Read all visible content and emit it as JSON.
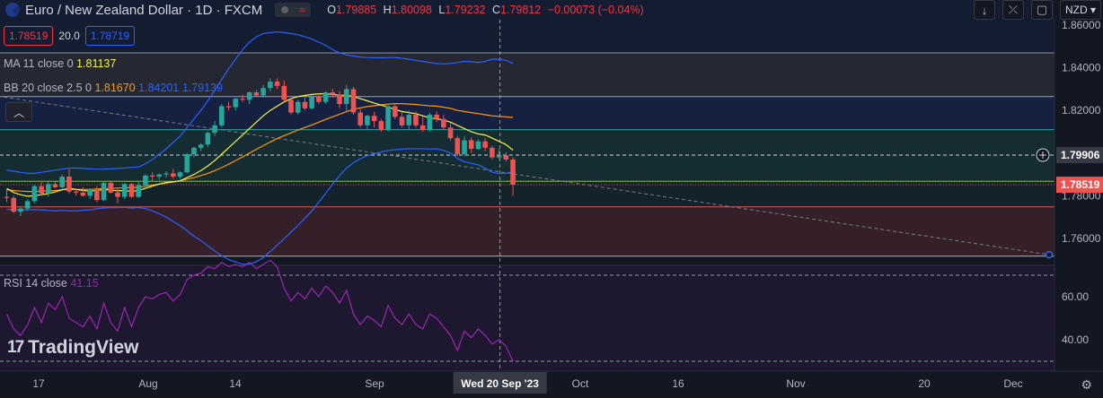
{
  "header": {
    "title": "Euro / New Zealand Dollar · 1D · FXCM",
    "ohlc": {
      "o_label": "O",
      "o": "1.79885",
      "h_label": "H",
      "h": "1.80098",
      "l_label": "L",
      "l": "1.79232",
      "c_label": "C",
      "c": "1.79812",
      "change": "−0.00073 (−0.04%)"
    },
    "sell_price": "1.78519",
    "spread": "20.0",
    "buy_price": "1.78719",
    "currency": "NZD"
  },
  "indicators": {
    "ma": {
      "label": "MA 11 close 0",
      "value": "1.81137"
    },
    "bb": {
      "label": "BB 20 close 2.5 0",
      "basis": "1.81670",
      "upper": "1.84201",
      "lower": "1.79139"
    },
    "rsi": {
      "label": "RSI 14 close",
      "value": "41.15"
    }
  },
  "logo_text": "TradingView",
  "colors": {
    "bg": "#131722",
    "up": "#26a69a",
    "down": "#ef5350",
    "ma": "#f5f53d",
    "bb_basis": "#ff9800",
    "bb_band": "#2962ff",
    "rsi": "#9c27b0"
  },
  "chart_data": {
    "type": "candlestick",
    "price_axis": {
      "ticks": [
        "1.86000",
        "1.84000",
        "1.82000",
        "1.80000",
        "1.78000",
        "1.76000"
      ],
      "range": [
        1.75,
        1.863
      ]
    },
    "price_markers": {
      "crosshair": "1.79906",
      "last": "1.78519"
    },
    "time_axis": {
      "ticks": [
        "17",
        "Aug",
        "14",
        "Sep",
        "Oct",
        "16",
        "Nov",
        "20",
        "Dec"
      ],
      "crosshair_label": "Wed 20 Sep '23"
    },
    "rsi_axis": {
      "ticks": [
        "60.00",
        "40.00"
      ],
      "upper_band": 70,
      "lower_band": 30
    },
    "candles": [
      [
        1.7795,
        1.7835,
        1.777,
        1.779
      ],
      [
        1.779,
        1.78,
        1.772,
        1.7725
      ],
      [
        1.7725,
        1.7745,
        1.7705,
        1.774
      ],
      [
        1.774,
        1.7785,
        1.773,
        1.7775
      ],
      [
        1.7775,
        1.785,
        1.7765,
        1.7845
      ],
      [
        1.7845,
        1.787,
        1.78,
        1.781
      ],
      [
        1.781,
        1.787,
        1.7795,
        1.7855
      ],
      [
        1.7855,
        1.787,
        1.7835,
        1.784
      ],
      [
        1.784,
        1.79,
        1.783,
        1.789
      ],
      [
        1.789,
        1.7925,
        1.781,
        1.782
      ],
      [
        1.782,
        1.7835,
        1.78,
        1.7815
      ],
      [
        1.7815,
        1.784,
        1.7795,
        1.78
      ],
      [
        1.78,
        1.7835,
        1.7785,
        1.783
      ],
      [
        1.783,
        1.7845,
        1.777,
        1.778
      ],
      [
        1.778,
        1.7865,
        1.7775,
        1.786
      ],
      [
        1.786,
        1.787,
        1.781,
        1.7815
      ],
      [
        1.7815,
        1.784,
        1.7765,
        1.7795
      ],
      [
        1.7795,
        1.786,
        1.7785,
        1.7855
      ],
      [
        1.7855,
        1.786,
        1.779,
        1.7795
      ],
      [
        1.7795,
        1.787,
        1.779,
        1.785
      ],
      [
        1.785,
        1.79,
        1.784,
        1.7895
      ],
      [
        1.7895,
        1.791,
        1.787,
        1.789
      ],
      [
        1.789,
        1.7905,
        1.7875,
        1.79
      ],
      [
        1.79,
        1.7915,
        1.7885,
        1.7905
      ],
      [
        1.7905,
        1.7925,
        1.788,
        1.789
      ],
      [
        1.789,
        1.7915,
        1.788,
        1.791
      ],
      [
        1.791,
        1.8,
        1.7905,
        1.7995
      ],
      [
        1.7995,
        1.803,
        1.798,
        1.8025
      ],
      [
        1.8025,
        1.8045,
        1.801,
        1.804
      ],
      [
        1.804,
        1.81,
        1.803,
        1.8095
      ],
      [
        1.8095,
        1.815,
        1.808,
        1.813
      ],
      [
        1.813,
        1.823,
        1.812,
        1.822
      ],
      [
        1.822,
        1.824,
        1.82,
        1.8215
      ],
      [
        1.8215,
        1.826,
        1.82,
        1.8255
      ],
      [
        1.8255,
        1.8275,
        1.824,
        1.825
      ],
      [
        1.825,
        1.829,
        1.823,
        1.8285
      ],
      [
        1.8285,
        1.8295,
        1.8265,
        1.827
      ],
      [
        1.827,
        1.832,
        1.826,
        1.8305
      ],
      [
        1.8305,
        1.835,
        1.829,
        1.8335
      ],
      [
        1.8335,
        1.835,
        1.83,
        1.8315
      ],
      [
        1.8315,
        1.834,
        1.824,
        1.825
      ],
      [
        1.825,
        1.826,
        1.818,
        1.819
      ],
      [
        1.819,
        1.825,
        1.818,
        1.824
      ],
      [
        1.824,
        1.826,
        1.82,
        1.821
      ],
      [
        1.821,
        1.827,
        1.8205,
        1.8265
      ],
      [
        1.8265,
        1.828,
        1.823,
        1.824
      ],
      [
        1.824,
        1.829,
        1.823,
        1.8285
      ],
      [
        1.8285,
        1.83,
        1.826,
        1.8275
      ],
      [
        1.8275,
        1.829,
        1.821,
        1.823
      ],
      [
        1.823,
        1.832,
        1.82,
        1.83
      ],
      [
        1.83,
        1.831,
        1.818,
        1.819
      ],
      [
        1.819,
        1.8215,
        1.812,
        1.813
      ],
      [
        1.813,
        1.818,
        1.811,
        1.8175
      ],
      [
        1.8175,
        1.8195,
        1.812,
        1.815
      ],
      [
        1.815,
        1.816,
        1.81,
        1.811
      ],
      [
        1.811,
        1.823,
        1.81,
        1.822
      ],
      [
        1.822,
        1.823,
        1.816,
        1.817
      ],
      [
        1.817,
        1.819,
        1.812,
        1.813
      ],
      [
        1.813,
        1.82,
        1.811,
        1.818
      ],
      [
        1.818,
        1.8195,
        1.812,
        1.813
      ],
      [
        1.813,
        1.817,
        1.81,
        1.811
      ],
      [
        1.811,
        1.819,
        1.81,
        1.818
      ],
      [
        1.818,
        1.8195,
        1.8145,
        1.816
      ],
      [
        1.816,
        1.818,
        1.811,
        1.812
      ],
      [
        1.812,
        1.814,
        1.806,
        1.807
      ],
      [
        1.807,
        1.808,
        1.7985,
        1.7995
      ],
      [
        1.7995,
        1.808,
        1.7985,
        1.806
      ],
      [
        1.806,
        1.8075,
        1.8,
        1.802
      ],
      [
        1.802,
        1.8065,
        1.8015,
        1.8055
      ],
      [
        1.8055,
        1.807,
        1.801,
        1.8025
      ],
      [
        1.8025,
        1.8035,
        1.797,
        1.798
      ],
      [
        1.798,
        1.802,
        1.7975,
        1.799
      ],
      [
        1.799,
        1.8005,
        1.796,
        1.797
      ],
      [
        1.797,
        1.798,
        1.78,
        1.7852
      ]
    ],
    "ma_points": [
      1.7835,
      1.7815,
      1.7805,
      1.7798,
      1.78,
      1.7805,
      1.781,
      1.7818,
      1.7828,
      1.7835,
      1.783,
      1.7825,
      1.7822,
      1.7825,
      1.783,
      1.7827,
      1.7823,
      1.7825,
      1.782,
      1.7825,
      1.7835,
      1.7845,
      1.7855,
      1.7862,
      1.7865,
      1.787,
      1.7885,
      1.79,
      1.7918,
      1.794,
      1.7965,
      1.7995,
      1.8025,
      1.8055,
      1.8085,
      1.8115,
      1.8145,
      1.8175,
      1.82,
      1.822,
      1.824,
      1.8255,
      1.8265,
      1.827,
      1.8275,
      1.8278,
      1.8278,
      1.8275,
      1.8272,
      1.827,
      1.8265,
      1.8255,
      1.8245,
      1.8235,
      1.8225,
      1.8215,
      1.8205,
      1.8195,
      1.819,
      1.8185,
      1.8175,
      1.8165,
      1.816,
      1.8155,
      1.8145,
      1.813,
      1.8115,
      1.81,
      1.809,
      1.8085,
      1.807,
      1.8055,
      1.804,
      1.8014
    ],
    "bb_basis_points": [
      1.7828,
      1.7825,
      1.7822,
      1.782,
      1.782,
      1.7822,
      1.7823,
      1.7825,
      1.7828,
      1.783,
      1.783,
      1.783,
      1.783,
      1.7832,
      1.7834,
      1.7835,
      1.7836,
      1.7838,
      1.7838,
      1.784,
      1.7845,
      1.785,
      1.7855,
      1.786,
      1.7865,
      1.787,
      1.7878,
      1.7885,
      1.7895,
      1.7905,
      1.7918,
      1.7932,
      1.7948,
      1.7965,
      1.7982,
      1.8,
      1.8018,
      1.8035,
      1.8052,
      1.8068,
      1.8082,
      1.8095,
      1.8108,
      1.812,
      1.8132,
      1.8145,
      1.8158,
      1.817,
      1.8182,
      1.8195,
      1.8205,
      1.8212,
      1.8218,
      1.8222,
      1.8226,
      1.823,
      1.8232,
      1.8232,
      1.823,
      1.8228,
      1.8225,
      1.8222,
      1.822,
      1.8215,
      1.821,
      1.82,
      1.8195,
      1.819,
      1.8185,
      1.818,
      1.8175,
      1.8172,
      1.817,
      1.8167
    ],
    "bb_upper_points": [
      1.792,
      1.7915,
      1.791,
      1.7905,
      1.7905,
      1.791,
      1.7915,
      1.792,
      1.7925,
      1.793,
      1.793,
      1.7928,
      1.7926,
      1.7925,
      1.7925,
      1.7926,
      1.7928,
      1.793,
      1.7933,
      1.7935,
      1.795,
      1.797,
      1.7995,
      1.802,
      1.805,
      1.808,
      1.812,
      1.816,
      1.82,
      1.8245,
      1.8295,
      1.8345,
      1.8395,
      1.844,
      1.8485,
      1.852,
      1.8545,
      1.856,
      1.8565,
      1.8568,
      1.8565,
      1.856,
      1.8555,
      1.8545,
      1.8535,
      1.852,
      1.8505,
      1.8485,
      1.847,
      1.846,
      1.8455,
      1.845,
      1.8448,
      1.8447,
      1.8447,
      1.8448,
      1.8448,
      1.8445,
      1.844,
      1.8435,
      1.843,
      1.8425,
      1.842,
      1.8418,
      1.842,
      1.8425,
      1.843,
      1.8428,
      1.8425,
      1.843,
      1.844,
      1.844,
      1.8435,
      1.842
    ],
    "bb_lower_points": [
      1.7736,
      1.7735,
      1.7734,
      1.7735,
      1.7735,
      1.7734,
      1.7731,
      1.773,
      1.7731,
      1.773,
      1.773,
      1.7732,
      1.7734,
      1.7739,
      1.7743,
      1.7744,
      1.7744,
      1.7746,
      1.7743,
      1.7745,
      1.774,
      1.773,
      1.7715,
      1.77,
      1.768,
      1.766,
      1.7636,
      1.761,
      1.759,
      1.7565,
      1.7541,
      1.7519,
      1.7501,
      1.749,
      1.7479,
      1.748,
      1.7491,
      1.751,
      1.7539,
      1.7568,
      1.7599,
      1.763,
      1.7661,
      1.7695,
      1.7729,
      1.777,
      1.7811,
      1.7855,
      1.7894,
      1.793,
      1.7955,
      1.7974,
      1.7988,
      1.7997,
      1.8005,
      1.8012,
      1.8016,
      1.8019,
      1.802,
      1.8021,
      1.802,
      1.8019,
      1.802,
      1.8012,
      1.8,
      1.7975,
      1.796,
      1.7952,
      1.7945,
      1.793,
      1.791,
      1.7904,
      1.7905,
      1.7914
    ],
    "rsi_points": [
      52,
      45,
      42,
      47,
      55,
      48,
      57,
      54,
      60,
      50,
      48,
      46,
      51,
      45,
      57,
      48,
      44,
      55,
      46,
      55,
      60,
      59,
      61,
      62,
      58,
      61,
      68,
      70,
      71,
      74,
      73,
      76,
      74,
      75,
      74,
      76,
      73,
      75,
      77,
      74,
      64,
      58,
      62,
      59,
      64,
      60,
      65,
      62,
      57,
      63,
      52,
      47,
      51,
      49,
      46,
      56,
      50,
      47,
      52,
      47,
      45,
      52,
      50,
      46,
      42,
      35,
      44,
      41,
      45,
      42,
      38,
      40,
      37,
      30
    ]
  }
}
